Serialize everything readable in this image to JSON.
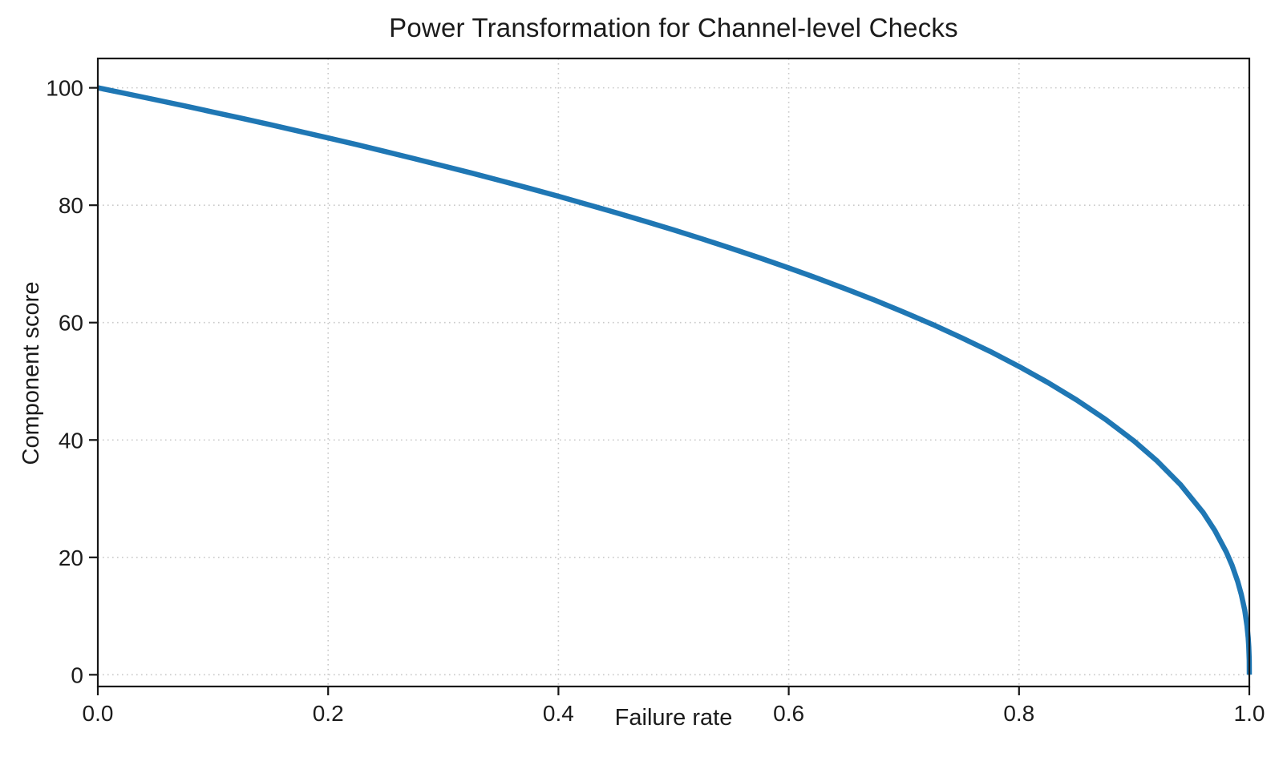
{
  "chart_data": {
    "type": "line",
    "title": "Power Transformation for Channel-level Checks",
    "xlabel": "Failure rate",
    "ylabel": "Component score",
    "xlim": [
      0,
      1
    ],
    "ylim": [
      -2,
      105
    ],
    "xticks": [
      0.0,
      0.2,
      0.4,
      0.6,
      0.8,
      1.0
    ],
    "xtick_labels": [
      "0.0",
      "0.2",
      "0.4",
      "0.6",
      "0.8",
      "1.0"
    ],
    "yticks": [
      0,
      20,
      40,
      60,
      80,
      100
    ],
    "ytick_labels": [
      "0",
      "20",
      "40",
      "60",
      "80",
      "100"
    ],
    "grid": true,
    "grid_style": "dotted",
    "legend": "none",
    "curve_formula": "score = 100 * (1 - failure_rate)^0.4",
    "colors": {
      "line": "#1f77b4",
      "grid": "#c9c9c9",
      "axis": "#161616",
      "background": "#ffffff"
    },
    "line_width": 6.5,
    "series": [
      {
        "name": "power-curve",
        "x": [
          0,
          0.025,
          0.05,
          0.075,
          0.1,
          0.125,
          0.15,
          0.175,
          0.2,
          0.225,
          0.25,
          0.275,
          0.3,
          0.325,
          0.35,
          0.375,
          0.4,
          0.425,
          0.45,
          0.475,
          0.5,
          0.525,
          0.55,
          0.575,
          0.6,
          0.625,
          0.65,
          0.675,
          0.7,
          0.725,
          0.75,
          0.775,
          0.8,
          0.825,
          0.85,
          0.875,
          0.9,
          0.92,
          0.94,
          0.96,
          0.97,
          0.98,
          0.985,
          0.99,
          0.993,
          0.996,
          0.998,
          0.999,
          0.9995,
          0.9999,
          1.0
        ],
        "y": [
          100,
          98.99,
          97.97,
          96.93,
          95.87,
          94.8,
          93.71,
          92.59,
          91.46,
          90.31,
          89.13,
          87.93,
          86.7,
          85.45,
          84.17,
          82.86,
          81.52,
          80.14,
          78.73,
          77.28,
          75.79,
          74.25,
          72.66,
          71.02,
          69.31,
          67.55,
          65.71,
          63.79,
          61.78,
          59.67,
          57.43,
          55.07,
          52.53,
          49.8,
          46.82,
          43.53,
          39.81,
          36.41,
          32.45,
          27.6,
          24.6,
          20.91,
          18.64,
          15.85,
          13.74,
          10.99,
          8.33,
          6.31,
          4.78,
          2.51,
          0
        ]
      }
    ]
  }
}
